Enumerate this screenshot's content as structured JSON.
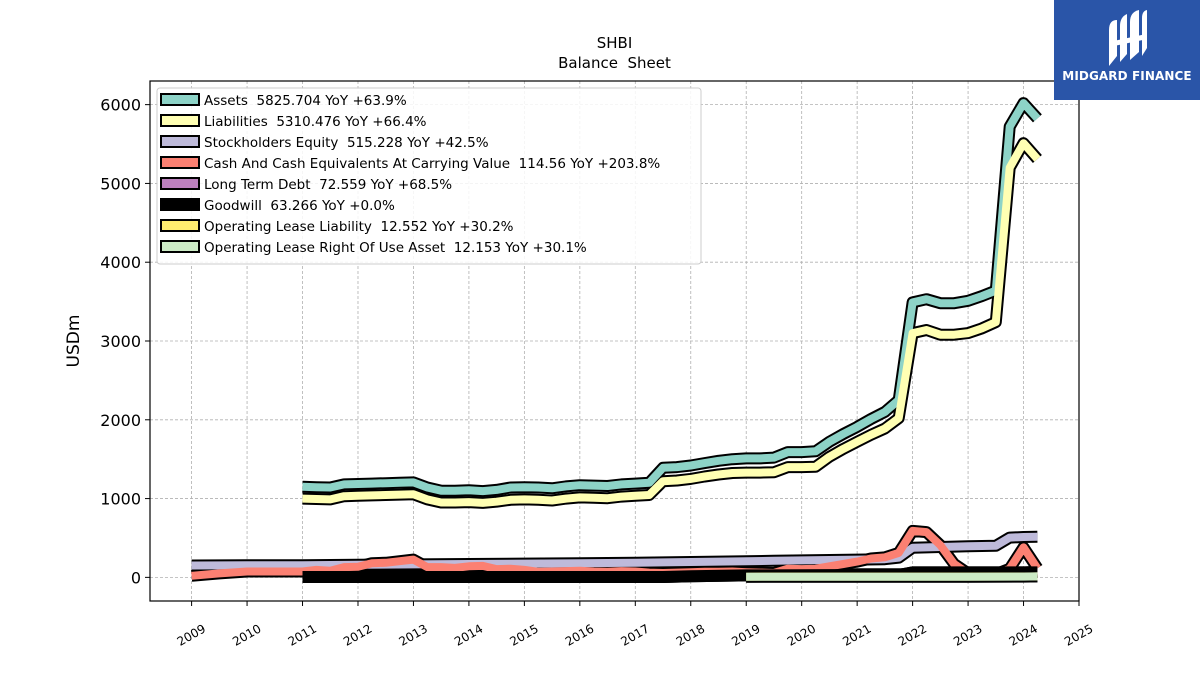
{
  "chart_data": {
    "type": "line",
    "title": "SHBI",
    "subtitle": "Balance  Sheet",
    "ylabel": "USDm",
    "xlabel": "",
    "xlim": [
      2008.25,
      2025.0
    ],
    "ylim": [
      -300,
      6300
    ],
    "x_ticks": [
      2009,
      2010,
      2011,
      2012,
      2013,
      2014,
      2015,
      2016,
      2017,
      2018,
      2019,
      2020,
      2021,
      2022,
      2023,
      2024,
      2025
    ],
    "y_ticks": [
      0,
      1000,
      2000,
      3000,
      4000,
      5000,
      6000
    ],
    "grid": true,
    "legend_position": "top-left",
    "series": [
      {
        "name": "Assets",
        "label": "Assets  5825.704 YoY +63.9%",
        "color": "#8dd3c7",
        "x": [
          2011.0,
          2011.25,
          2011.5,
          2011.75,
          2012.0,
          2012.25,
          2012.5,
          2012.75,
          2013.0,
          2013.25,
          2013.5,
          2013.75,
          2014.0,
          2014.25,
          2014.5,
          2014.75,
          2015.0,
          2015.25,
          2015.5,
          2015.75,
          2016.0,
          2016.25,
          2016.5,
          2016.75,
          2017.0,
          2017.25,
          2017.5,
          2017.75,
          2018.0,
          2018.25,
          2018.5,
          2018.75,
          2019.0,
          2019.25,
          2019.5,
          2019.75,
          2020.0,
          2020.25,
          2020.5,
          2020.75,
          2021.0,
          2021.25,
          2021.5,
          2021.75,
          2022.0,
          2022.25,
          2022.5,
          2022.75,
          2023.0,
          2023.25,
          2023.5,
          2023.75,
          2024.0,
          2024.25
        ],
        "y": [
          1150,
          1145,
          1140,
          1180,
          1185,
          1190,
          1195,
          1200,
          1205,
          1140,
          1100,
          1100,
          1105,
          1095,
          1110,
          1140,
          1145,
          1140,
          1130,
          1155,
          1170,
          1165,
          1160,
          1180,
          1190,
          1200,
          1390,
          1400,
          1420,
          1450,
          1480,
          1500,
          1510,
          1510,
          1520,
          1590,
          1590,
          1600,
          1720,
          1820,
          1910,
          2010,
          2100,
          2250,
          3490,
          3530,
          3480,
          3480,
          3510,
          3570,
          3640,
          5720,
          6020,
          5825.704
        ]
      },
      {
        "name": "Liabilities",
        "label": "Liabilities  5310.476 YoY +66.4%",
        "color": "#ffffb3",
        "x": [
          2011.0,
          2011.25,
          2011.5,
          2011.75,
          2012.0,
          2012.25,
          2012.5,
          2012.75,
          2013.0,
          2013.25,
          2013.5,
          2013.75,
          2014.0,
          2014.25,
          2014.5,
          2014.75,
          2015.0,
          2015.25,
          2015.5,
          2015.75,
          2016.0,
          2016.25,
          2016.5,
          2016.75,
          2017.0,
          2017.25,
          2017.5,
          2017.75,
          2018.0,
          2018.25,
          2018.5,
          2018.75,
          2019.0,
          2019.25,
          2019.5,
          2019.75,
          2020.0,
          2020.25,
          2020.5,
          2020.75,
          2021.0,
          2021.25,
          2021.5,
          2021.75,
          2022.0,
          2022.25,
          2022.5,
          2022.75,
          2023.0,
          2023.25,
          2023.5,
          2023.75,
          2024.0,
          2024.25
        ],
        "y": [
          1000,
          995,
          990,
          1030,
          1035,
          1040,
          1045,
          1050,
          1055,
          990,
          950,
          950,
          955,
          945,
          960,
          985,
          990,
          985,
          975,
          1000,
          1015,
          1010,
          1005,
          1025,
          1035,
          1045,
          1220,
          1230,
          1250,
          1280,
          1305,
          1325,
          1330,
          1330,
          1335,
          1400,
          1400,
          1405,
          1530,
          1630,
          1720,
          1810,
          1890,
          2020,
          3100,
          3140,
          3080,
          3080,
          3100,
          3160,
          3240,
          5200,
          5510,
          5310.476
        ]
      },
      {
        "name": "Stockholders Equity",
        "label": "Stockholders Equity  515.228 YoY +42.5%",
        "color": "#bebada",
        "x": [
          2009.0,
          2010.0,
          2011.0,
          2012.0,
          2013.0,
          2014.0,
          2015.0,
          2016.0,
          2017.0,
          2018.0,
          2019.0,
          2019.5,
          2020.0,
          2020.5,
          2021.0,
          2021.5,
          2021.75,
          2022.0,
          2022.5,
          2023.0,
          2023.5,
          2023.75,
          2024.0,
          2024.25
        ],
        "y": [
          150,
          155,
          155,
          160,
          165,
          170,
          175,
          180,
          185,
          195,
          205,
          210,
          215,
          220,
          225,
          230,
          250,
          375,
          385,
          395,
          400,
          505,
          512,
          515.228
        ]
      },
      {
        "name": "Cash And Cash Equivalents At Carrying Value",
        "label": "Cash And Cash Equivalents At Carrying Value  114.56 YoY +203.8%",
        "color": "#fb8072",
        "x": [
          2009.0,
          2009.5,
          2010.0,
          2010.5,
          2011.0,
          2011.25,
          2011.5,
          2011.75,
          2012.0,
          2012.25,
          2012.5,
          2012.75,
          2013.0,
          2013.25,
          2013.5,
          2013.75,
          2014.0,
          2014.25,
          2014.5,
          2014.75,
          2015.0,
          2015.25,
          2015.5,
          2015.75,
          2016.0,
          2016.25,
          2016.5,
          2016.75,
          2017.0,
          2017.25,
          2017.5,
          2017.75,
          2018.0,
          2018.25,
          2018.5,
          2018.75,
          2019.0,
          2019.25,
          2019.5,
          2019.75,
          2020.0,
          2020.25,
          2020.5,
          2020.75,
          2021.0,
          2021.25,
          2021.5,
          2021.75,
          2022.0,
          2022.25,
          2022.5,
          2022.75,
          2023.0,
          2023.25,
          2023.5,
          2023.75,
          2024.0,
          2024.25
        ],
        "y": [
          20,
          50,
          75,
          75,
          75,
          95,
          85,
          130,
          135,
          180,
          185,
          205,
          225,
          130,
          130,
          120,
          140,
          145,
          105,
          110,
          95,
          70,
          75,
          80,
          85,
          75,
          70,
          80,
          75,
          60,
          55,
          60,
          65,
          70,
          70,
          75,
          65,
          60,
          55,
          110,
          105,
          110,
          140,
          170,
          200,
          240,
          255,
          310,
          590,
          575,
          410,
          170,
          50,
          55,
          40,
          110,
          380,
          114.56
        ]
      },
      {
        "name": "Long Term Debt",
        "label": "Long Term Debt  72.559 YoY +68.5%",
        "color": "#bc80bd",
        "x": [
          2011.0,
          2012.0,
          2013.0,
          2014.0,
          2015.0,
          2016.0,
          2017.0,
          2018.0,
          2019.0,
          2019.5,
          2020.0,
          2021.0,
          2021.5,
          2022.0,
          2023.0,
          2023.5,
          2024.0,
          2024.25
        ],
        "y": [
          20,
          20,
          20,
          20,
          20,
          20,
          20,
          25,
          30,
          35,
          40,
          40,
          40,
          40,
          43,
          43,
          60,
          72.559
        ]
      },
      {
        "name": "Goodwill",
        "label": "Goodwill  63.266 YoY +0.0%",
        "color": "#000000",
        "x": [
          2011.0,
          2017.5,
          2018.0,
          2019.0,
          2020.0,
          2021.0,
          2021.75,
          2022.0,
          2023.0,
          2024.0,
          2024.25
        ],
        "y": [
          5,
          5,
          15,
          25,
          28,
          30,
          30,
          63.266,
          63.266,
          63.266,
          63.266
        ]
      },
      {
        "name": "Operating Lease Liability",
        "label": "Operating Lease Liability  12.552 YoY +30.2%",
        "color": "#ffed6f",
        "x": [
          2019.0,
          2020.0,
          2021.0,
          2022.0,
          2023.0,
          2024.0,
          2024.25
        ],
        "y": [
          9,
          10,
          10,
          10,
          10,
          11,
          12.552
        ]
      },
      {
        "name": "Operating Lease Right Of Use Asset",
        "label": "Operating Lease Right Of Use Asset  12.153 YoY +30.1%",
        "color": "#ccebc5",
        "x": [
          2019.0,
          2020.0,
          2021.0,
          2022.0,
          2023.0,
          2024.0,
          2024.25
        ],
        "y": [
          8,
          9,
          9,
          9,
          9,
          10,
          12.153
        ]
      }
    ]
  },
  "logo": {
    "text": "MIDGARD FINANCE",
    "bg_color": "#2a55a8",
    "icon": "midgard-logo-icon"
  }
}
